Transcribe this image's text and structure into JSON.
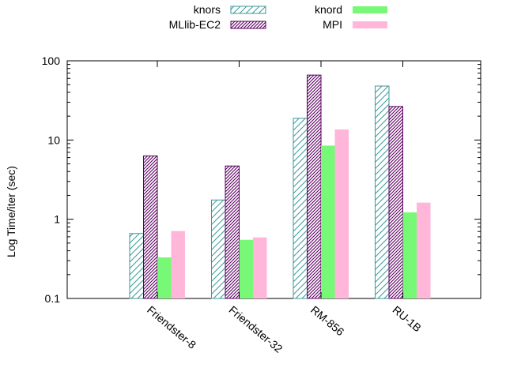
{
  "chart_data": {
    "type": "bar",
    "ylabel": "Log Time/iter (sec)",
    "xlabel": "",
    "y_scale": "log",
    "ylim": [
      0.1,
      100
    ],
    "y_ticks": [
      0.1,
      1,
      10,
      100
    ],
    "y_tick_labels": [
      "0.1",
      "1",
      "10",
      "100"
    ],
    "categories": [
      "Friendster-8",
      "Friendster-32",
      "RM-856",
      "RU-1B"
    ],
    "legend_position": "top",
    "grid": false,
    "series": [
      {
        "name": "knors",
        "values": [
          0.66,
          1.75,
          18.8,
          48
        ],
        "color": "#3a9a9a",
        "pattern": "hatch-sparse"
      },
      {
        "name": "MLlib-EC2",
        "values": [
          6.3,
          4.7,
          66,
          26.5
        ],
        "color": "#5a0060",
        "pattern": "hatch-dense"
      },
      {
        "name": "knord",
        "values": [
          0.33,
          0.55,
          8.5,
          1.22
        ],
        "color": "#77f977",
        "pattern": "solid"
      },
      {
        "name": "MPI",
        "values": [
          0.71,
          0.59,
          13.6,
          1.62
        ],
        "color": "#ffb6d9",
        "pattern": "solid"
      }
    ]
  }
}
